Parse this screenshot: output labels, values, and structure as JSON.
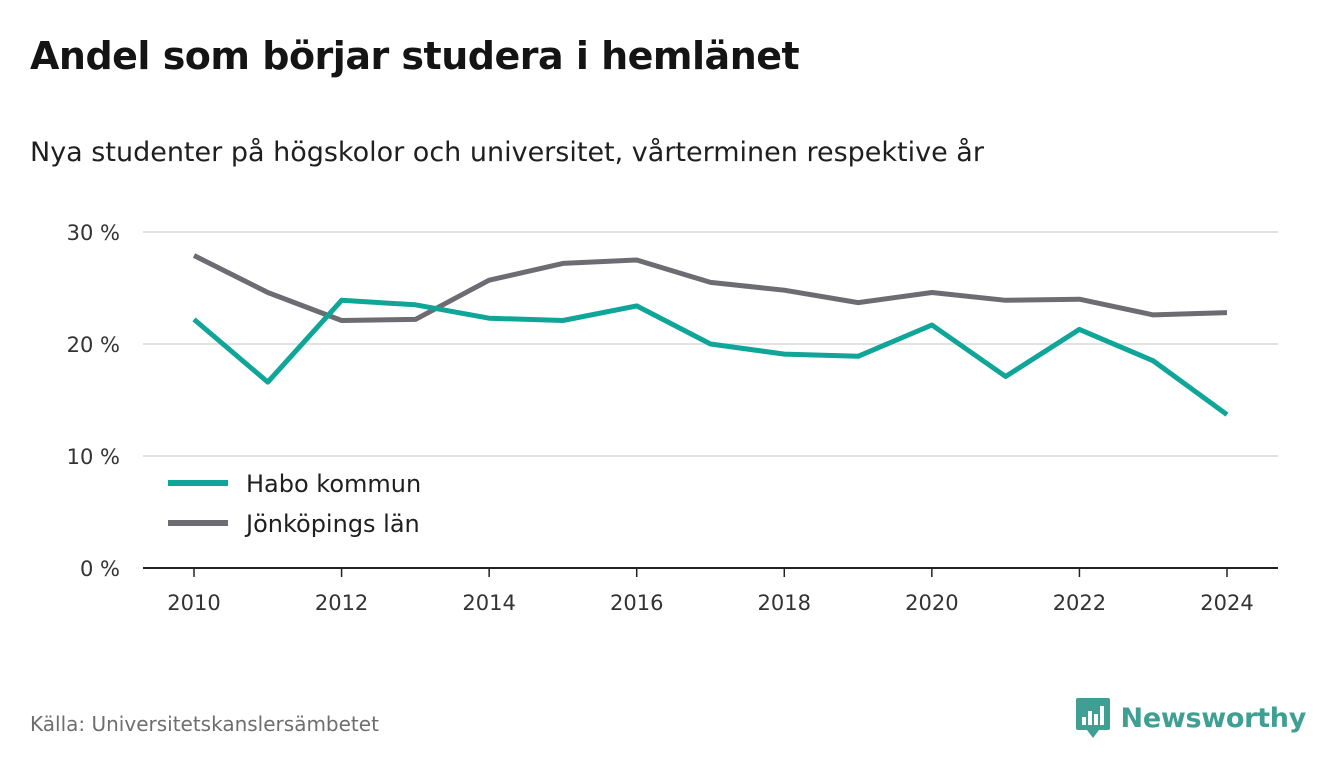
{
  "title": "Andel som börjar studera i hemlänet",
  "subtitle": "Nya studenter på högskolor och universitet, vårterminen respektive år",
  "source": "Källa: Universitetskanslersämbetet",
  "brand": {
    "name": "Newsworthy",
    "icon": "newsworthy-logo-icon",
    "color": "#3f9f92"
  },
  "chart_data": {
    "type": "line",
    "x": [
      2010,
      2011,
      2012,
      2013,
      2014,
      2015,
      2016,
      2017,
      2018,
      2019,
      2020,
      2021,
      2022,
      2023,
      2024
    ],
    "x_ticks": [
      2010,
      2012,
      2014,
      2016,
      2018,
      2020,
      2022,
      2024
    ],
    "x_tick_labels": [
      "2010",
      "2012",
      "2014",
      "2016",
      "2018",
      "2020",
      "2022",
      "2024"
    ],
    "y_ticks": [
      0,
      10,
      20,
      30
    ],
    "y_tick_labels": [
      "0 %",
      "10 %",
      "20 %",
      "30 %"
    ],
    "ylim": [
      0,
      30
    ],
    "grid": true,
    "legend_position": "bottom-left",
    "series": [
      {
        "name": "Habo kommun",
        "color": "#0fa598",
        "values": [
          22.2,
          16.6,
          23.9,
          23.5,
          22.3,
          22.1,
          23.4,
          20.0,
          19.1,
          18.9,
          21.7,
          17.1,
          21.3,
          18.5,
          13.7
        ]
      },
      {
        "name": "Jönköpings län",
        "color": "#6d6c73",
        "values": [
          27.9,
          24.6,
          22.1,
          22.2,
          25.7,
          27.2,
          27.5,
          25.5,
          24.8,
          23.7,
          24.6,
          23.9,
          24.0,
          22.6,
          22.8
        ]
      }
    ]
  }
}
